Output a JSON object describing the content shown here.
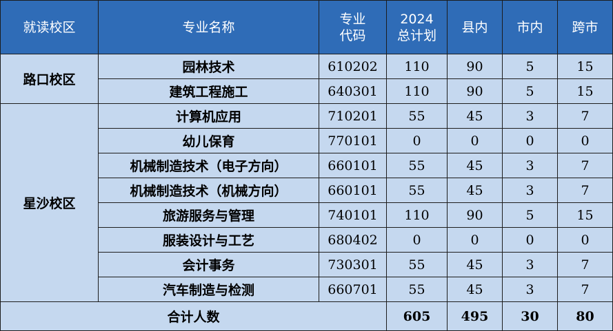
{
  "headers": {
    "campus": "就读校区",
    "major": "专业名称",
    "code_line1": "专业",
    "code_line2": "代码",
    "plan_line1": "2024",
    "plan_line2": "总计划",
    "county": "县内",
    "city": "市内",
    "cross_city": "跨市"
  },
  "campuses": [
    {
      "name": "路口校区",
      "rows": [
        {
          "major": "园林技术",
          "code": "610202",
          "total": "110",
          "county": "90",
          "city": "5",
          "cross": "15"
        },
        {
          "major": "建筑工程施工",
          "code": "640301",
          "total": "110",
          "county": "90",
          "city": "5",
          "cross": "15"
        }
      ]
    },
    {
      "name": "星沙校区",
      "rows": [
        {
          "major": "计算机应用",
          "code": "710201",
          "total": "55",
          "county": "45",
          "city": "3",
          "cross": "7"
        },
        {
          "major": "幼儿保育",
          "code": "770101",
          "total": "0",
          "county": "0",
          "city": "0",
          "cross": "0"
        },
        {
          "major": "机械制造技术（电子方向）",
          "code": "660101",
          "total": "55",
          "county": "45",
          "city": "3",
          "cross": "7"
        },
        {
          "major": "机械制造技术（机械方向）",
          "code": "660101",
          "total": "55",
          "county": "45",
          "city": "3",
          "cross": "7"
        },
        {
          "major": "旅游服务与管理",
          "code": "740101",
          "total": "110",
          "county": "90",
          "city": "5",
          "cross": "15"
        },
        {
          "major": "服装设计与工艺",
          "code": "680402",
          "total": "0",
          "county": "0",
          "city": "0",
          "cross": "0"
        },
        {
          "major": "会计事务",
          "code": "730301",
          "total": "55",
          "county": "45",
          "city": "3",
          "cross": "7"
        },
        {
          "major": "汽车制造与检测",
          "code": "660701",
          "total": "55",
          "county": "45",
          "city": "3",
          "cross": "7"
        }
      ]
    }
  ],
  "totals": {
    "label": "合计人数",
    "total": "605",
    "county": "495",
    "city": "30",
    "cross": "80"
  }
}
